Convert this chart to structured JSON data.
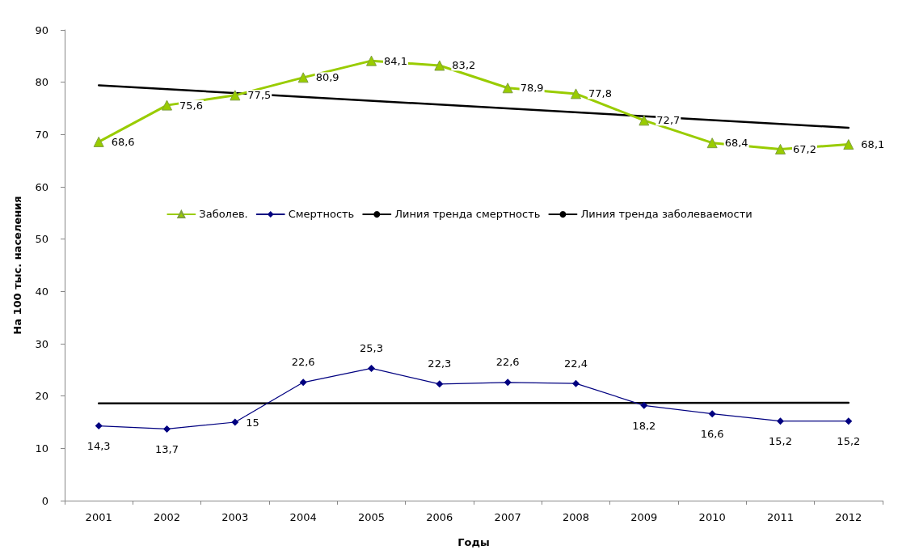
{
  "chart_data": {
    "type": "line",
    "xlabel": "Годы",
    "ylabel": "На 100 тыс. населения",
    "categories": [
      "2001",
      "2002",
      "2003",
      "2004",
      "2005",
      "2006",
      "2007",
      "2008",
      "2009",
      "2010",
      "2011",
      "2012"
    ],
    "series": [
      {
        "name": "Заболев.",
        "color": "#99cc00",
        "marker": "triangle",
        "values": [
          68.6,
          75.6,
          77.5,
          80.9,
          84.1,
          83.2,
          78.9,
          77.8,
          72.7,
          68.4,
          67.2,
          68.1
        ],
        "value_labels": [
          "68,6",
          "75,6",
          "77,5",
          "80,9",
          "84,1",
          "83,2",
          "78,9",
          "77,8",
          "72,7",
          "68,4",
          "67,2",
          "68,1"
        ]
      },
      {
        "name": "Смертность",
        "color": "#000080",
        "marker": "diamond",
        "values": [
          14.3,
          13.7,
          15,
          22.6,
          25.3,
          22.3,
          22.6,
          22.4,
          18.2,
          16.6,
          15.2,
          15.2
        ],
        "value_labels": [
          "14,3",
          "13,7",
          "15",
          "22,6",
          "25,3",
          "22,3",
          "22,6",
          "22,4",
          "18,2",
          "16,6",
          "15,2",
          "15,2"
        ]
      },
      {
        "name": "Линия тренда смертность",
        "color": "#000000",
        "marker": "none",
        "values": [
          18.6,
          null,
          null,
          null,
          null,
          null,
          null,
          null,
          null,
          null,
          null,
          18.7
        ]
      },
      {
        "name": "Линия тренда заболеваемости",
        "color": "#000000",
        "marker": "none",
        "values": [
          79.4,
          null,
          null,
          null,
          null,
          null,
          null,
          null,
          null,
          null,
          null,
          71.3
        ]
      }
    ],
    "ylim": [
      0,
      90
    ],
    "yticks": [
      0,
      10,
      20,
      30,
      40,
      50,
      60,
      70,
      80,
      90
    ],
    "grid": false,
    "legend": "center"
  }
}
